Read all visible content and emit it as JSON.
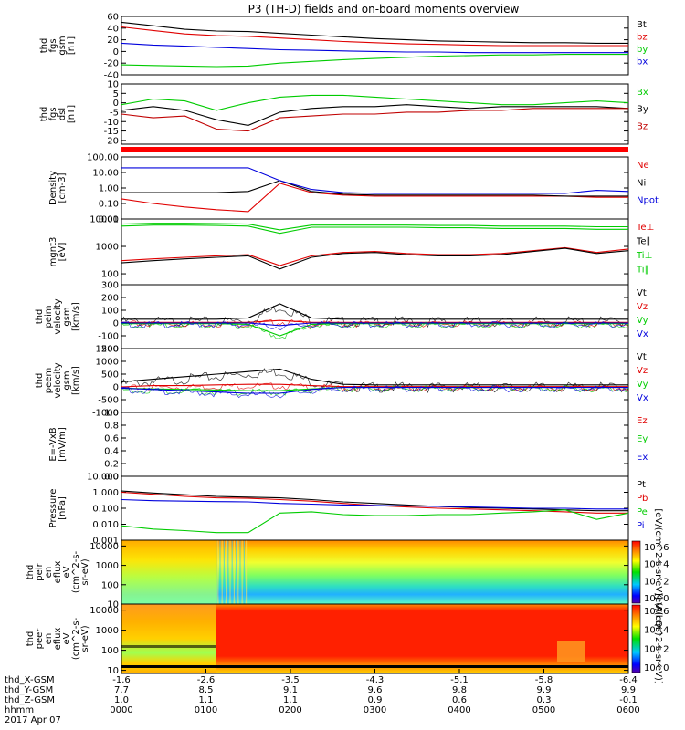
{
  "title": "P3 (TH-D) fields and on-board moments overview",
  "chart_data": {
    "type": "line",
    "title": "P3 (TH-D) fields and on-board moments overview",
    "date": "2017 Apr 07",
    "x_ticks": [
      "0000",
      "0100",
      "0200",
      "0300",
      "0400",
      "0500",
      "0600"
    ],
    "xlim": [
      "0000",
      "0600"
    ],
    "ephemeris": [
      {
        "label": "thd_X-GSM",
        "values": [
          "-1.6",
          "-2.6",
          "-3.5",
          "-4.3",
          "-5.1",
          "-5.8",
          "-6.4"
        ]
      },
      {
        "label": "thd_Y-GSM",
        "values": [
          "7.7",
          "8.5",
          "9.1",
          "9.6",
          "9.8",
          "9.9",
          "9.9"
        ]
      },
      {
        "label": "thd_Z-GSM",
        "values": [
          "1.0",
          "1.1",
          "1.1",
          "0.9",
          "0.6",
          "0.3",
          "-0.1"
        ]
      },
      {
        "label": "hhmm",
        "values": [
          "0000",
          "0100",
          "0200",
          "0300",
          "0400",
          "0500",
          "0600"
        ]
      }
    ],
    "panels": [
      {
        "id": "fgs_gsm",
        "ylabel": [
          "thd",
          "fgs",
          "gsm",
          "[nT]"
        ],
        "yticks": [
          "60",
          "40",
          "20",
          "0",
          "-20",
          "-40"
        ],
        "scale": "linear",
        "ylim": [
          -40,
          60
        ],
        "legend": [
          {
            "name": "Bt",
            "color": "#000000"
          },
          {
            "name": "bz",
            "color": "#e00000"
          },
          {
            "name": "by",
            "color": "#00cc00"
          },
          {
            "name": "bx",
            "color": "#0000dd"
          }
        ],
        "series": [
          {
            "name": "Bt",
            "values": [
              50,
              44,
              38,
              35,
              34,
              31,
              28,
              25,
              22,
              20,
              18,
              17,
              16,
              15,
              15,
              14,
              14
            ]
          },
          {
            "name": "bz",
            "values": [
              42,
              36,
              30,
              27,
              26,
              23,
              20,
              17,
              15,
              13,
              12,
              11,
              10,
              10,
              10,
              10,
              10
            ]
          },
          {
            "name": "by",
            "values": [
              -23,
              -24,
              -25,
              -26,
              -25,
              -20,
              -17,
              -14,
              -12,
              -10,
              -8,
              -7,
              -6,
              -6,
              -5,
              -5,
              -5
            ]
          },
          {
            "name": "bx",
            "values": [
              14,
              11,
              9,
              7,
              5,
              3,
              2,
              1,
              0,
              -1,
              -1,
              -2,
              -2,
              -2,
              -2,
              -2,
              -2
            ]
          }
        ]
      },
      {
        "id": "fgs_dsl",
        "ylabel": [
          "thd",
          "fgs",
          "dsl",
          "[nT]"
        ],
        "yticks": [
          "10",
          "5",
          "0",
          "-5",
          "-10",
          "-15",
          "-20"
        ],
        "scale": "linear",
        "ylim": [
          -22,
          10
        ],
        "legend": [
          {
            "name": "Bx",
            "color": "#00cc00"
          },
          {
            "name": "By",
            "color": "#000000"
          },
          {
            "name": "Bz",
            "color": "#c00000"
          }
        ],
        "series": [
          {
            "name": "Bx",
            "values": [
              -1,
              2,
              1,
              -4,
              0,
              3,
              4,
              4,
              3,
              2,
              1,
              0,
              -1,
              -1,
              0,
              1,
              0
            ]
          },
          {
            "name": "By",
            "values": [
              -4,
              -2,
              -4,
              -9,
              -12,
              -5,
              -3,
              -2,
              -2,
              -1,
              -2,
              -3,
              -2,
              -2,
              -2,
              -2,
              -3
            ]
          },
          {
            "name": "Bz",
            "values": [
              -6,
              -8,
              -7,
              -14,
              -15,
              -8,
              -7,
              -6,
              -6,
              -5,
              -5,
              -4,
              -4,
              -3,
              -3,
              -3,
              -3
            ]
          }
        ]
      },
      {
        "id": "density",
        "ylabel": [
          "Density",
          "[cm-3]"
        ],
        "yticks": [
          "100.00",
          "10.00",
          "1.00",
          "0.10",
          "0.01"
        ],
        "scale": "log",
        "ylim": [
          0.01,
          100
        ],
        "legend": [
          {
            "name": "Ne",
            "color": "#e00000"
          },
          {
            "name": "Ni",
            "color": "#000000"
          },
          {
            "name": "Npot",
            "color": "#0000dd"
          }
        ],
        "series": [
          {
            "name": "Ne",
            "values": [
              0.2,
              0.1,
              0.06,
              0.04,
              0.03,
              2,
              0.5,
              0.35,
              0.3,
              0.3,
              0.3,
              0.3,
              0.3,
              0.3,
              0.3,
              0.25,
              0.25
            ]
          },
          {
            "name": "Ni",
            "values": [
              0.5,
              0.5,
              0.5,
              0.5,
              0.6,
              3,
              0.6,
              0.4,
              0.35,
              0.35,
              0.35,
              0.35,
              0.35,
              0.35,
              0.3,
              0.3,
              0.3
            ]
          },
          {
            "name": "Npot",
            "values": [
              20,
              20,
              20,
              20,
              20,
              3,
              0.8,
              0.5,
              0.45,
              0.45,
              0.45,
              0.45,
              0.45,
              0.45,
              0.45,
              0.7,
              0.6
            ]
          }
        ]
      },
      {
        "id": "temps",
        "ylabel": [
          "mgnt3",
          "[eV]"
        ],
        "yticks": [
          "10000",
          "1000",
          "100"
        ],
        "scale": "log",
        "ylim": [
          40,
          10000
        ],
        "legend": [
          {
            "name": "Te⊥",
            "color": "#e00000"
          },
          {
            "name": "Te∥",
            "color": "#000000"
          },
          {
            "name": "Ti⊥",
            "color": "#00cc00"
          },
          {
            "name": "Ti∥",
            "color": "#00cc00"
          }
        ],
        "series": [
          {
            "name": "Te⊥",
            "values": [
              300,
              350,
              400,
              450,
              500,
              200,
              450,
              600,
              650,
              550,
              500,
              500,
              550,
              700,
              900,
              600,
              800
            ]
          },
          {
            "name": "Te∥",
            "values": [
              250,
              300,
              350,
              400,
              450,
              150,
              400,
              550,
              600,
              500,
              450,
              450,
              500,
              650,
              850,
              550,
              700
            ]
          },
          {
            "name": "Ti⊥",
            "values": [
              5500,
              6000,
              6000,
              5800,
              5500,
              3000,
              5000,
              5000,
              5000,
              5000,
              4800,
              4800,
              4500,
              4500,
              4500,
              4200,
              4200
            ]
          },
          {
            "name": "Ti∥",
            "values": [
              6500,
              7000,
              7000,
              6800,
              6500,
              4000,
              6000,
              6000,
              6000,
              6000,
              5800,
              5800,
              5500,
              5500,
              5500,
              5200,
              5200
            ]
          }
        ]
      },
      {
        "id": "peim",
        "ylabel": [
          "thd",
          "peim",
          "velocity",
          "gsm",
          "[km/s]"
        ],
        "yticks": [
          "300",
          "200",
          "100",
          "0",
          "-100",
          "-200"
        ],
        "scale": "linear",
        "ylim": [
          -200,
          300
        ],
        "legend": [
          {
            "name": "Vt",
            "color": "#000000"
          },
          {
            "name": "Vz",
            "color": "#e00000"
          },
          {
            "name": "Vy",
            "color": "#00cc00"
          },
          {
            "name": "Vx",
            "color": "#0000dd"
          }
        ],
        "series": [
          {
            "name": "Vt",
            "values": [
              30,
              30,
              30,
              30,
              40,
              150,
              40,
              30,
              30,
              30,
              30,
              30,
              30,
              30,
              30,
              30,
              30
            ]
          },
          {
            "name": "Vz",
            "values": [
              5,
              5,
              5,
              5,
              5,
              20,
              5,
              5,
              5,
              5,
              5,
              5,
              5,
              5,
              5,
              5,
              5
            ]
          },
          {
            "name": "Vy",
            "values": [
              -5,
              -5,
              -5,
              -5,
              -10,
              -100,
              -10,
              -5,
              -5,
              -5,
              -5,
              -5,
              -5,
              -5,
              -5,
              -5,
              -5
            ]
          },
          {
            "name": "Vx",
            "values": [
              0,
              0,
              0,
              0,
              0,
              -20,
              0,
              0,
              0,
              0,
              0,
              0,
              0,
              0,
              0,
              0,
              0
            ]
          }
        ]
      },
      {
        "id": "peem",
        "ylabel": [
          "thd",
          "peem",
          "velocity",
          "gsm",
          "[km/s]"
        ],
        "yticks": [
          "1500",
          "1000",
          "500",
          "0",
          "-500",
          "-1000"
        ],
        "scale": "linear",
        "ylim": [
          -1000,
          1500
        ],
        "legend": [
          {
            "name": "Vt",
            "color": "#000000"
          },
          {
            "name": "Vz",
            "color": "#e00000"
          },
          {
            "name": "Vy",
            "color": "#00cc00"
          },
          {
            "name": "Vx",
            "color": "#0000dd"
          }
        ],
        "series": [
          {
            "name": "Vt",
            "values": [
              200,
              300,
              400,
              500,
              600,
              700,
              300,
              100,
              80,
              80,
              80,
              80,
              80,
              80,
              80,
              80,
              80
            ]
          },
          {
            "name": "Vz",
            "values": [
              0,
              50,
              50,
              80,
              100,
              100,
              50,
              10,
              10,
              10,
              10,
              10,
              10,
              10,
              10,
              10,
              10
            ]
          },
          {
            "name": "Vy",
            "values": [
              -50,
              -80,
              -100,
              -120,
              -150,
              -150,
              -80,
              -20,
              -20,
              -20,
              -20,
              -20,
              -20,
              -20,
              -20,
              -20,
              -20
            ]
          },
          {
            "name": "Vx",
            "values": [
              -50,
              -100,
              -150,
              -200,
              -250,
              -250,
              -100,
              -20,
              -20,
              -20,
              -20,
              -20,
              -20,
              -20,
              -20,
              -20,
              -20
            ]
          }
        ]
      },
      {
        "id": "efield",
        "ylabel": [
          "E=-VxB",
          "[mV/m]"
        ],
        "yticks": [
          "1.0",
          "0.8",
          "0.6",
          "0.4",
          "0.2",
          "0.0"
        ],
        "scale": "linear",
        "ylim": [
          0,
          1
        ],
        "legend": [
          {
            "name": "Ez",
            "color": "#e00000"
          },
          {
            "name": "Ey",
            "color": "#00cc00"
          },
          {
            "name": "Ex",
            "color": "#0000dd"
          }
        ],
        "series": []
      },
      {
        "id": "pressure",
        "ylabel": [
          "Pressure",
          "[nPa]"
        ],
        "yticks": [
          "10.000",
          "1.000",
          "0.100",
          "0.010",
          "0.001"
        ],
        "scale": "log",
        "ylim": [
          0.001,
          10
        ],
        "legend": [
          {
            "name": "Pt",
            "color": "#000000"
          },
          {
            "name": "Pb",
            "color": "#e00000"
          },
          {
            "name": "Pe",
            "color": "#00cc00"
          },
          {
            "name": "Pi",
            "color": "#0000dd"
          }
        ],
        "series": [
          {
            "name": "Pt",
            "values": [
              1.2,
              0.9,
              0.7,
              0.55,
              0.5,
              0.45,
              0.35,
              0.25,
              0.2,
              0.16,
              0.13,
              0.11,
              0.1,
              0.09,
              0.08,
              0.07,
              0.07
            ]
          },
          {
            "name": "Pb",
            "values": [
              1.0,
              0.75,
              0.55,
              0.45,
              0.42,
              0.35,
              0.28,
              0.2,
              0.15,
              0.12,
              0.1,
              0.09,
              0.08,
              0.07,
              0.06,
              0.05,
              0.05
            ]
          },
          {
            "name": "Pe",
            "values": [
              0.008,
              0.005,
              0.004,
              0.003,
              0.003,
              0.05,
              0.06,
              0.04,
              0.035,
              0.035,
              0.04,
              0.04,
              0.05,
              0.06,
              0.08,
              0.02,
              0.05
            ]
          },
          {
            "name": "Pi",
            "values": [
              0.35,
              0.3,
              0.28,
              0.26,
              0.25,
              0.2,
              0.18,
              0.16,
              0.15,
              0.14,
              0.13,
              0.12,
              0.11,
              0.1,
              0.1,
              0.09,
              0.09
            ]
          }
        ]
      },
      {
        "id": "peir",
        "ylabel": [
          "thd",
          "peir",
          "en",
          "eflux",
          "eV",
          "(cm^2-s-",
          "sr-eV)"
        ],
        "yticks": [
          "10000",
          "1000",
          "100",
          "10"
        ],
        "scale": "log",
        "ylim": [
          10,
          20000
        ],
        "type": "heatmap",
        "colorbar_ticks": [
          "10^6",
          "10^4",
          "10^2",
          "10^0"
        ],
        "colorbar_label": "[eV/(cm^2-s-sr-eV)] (All Qs)"
      },
      {
        "id": "peer",
        "ylabel": [
          "thd",
          "peer",
          "en",
          "eflux",
          "eV",
          "(cm^2-s-",
          "sr-eV)"
        ],
        "yticks": [
          "10000",
          "1000",
          "100",
          "10"
        ],
        "scale": "log",
        "ylim": [
          7,
          20000
        ],
        "type": "heatmap",
        "colorbar_ticks": [
          "10^6",
          "10^4",
          "10^2",
          "10^0"
        ],
        "colorbar_label": "[eV/(cm^2-s-sr-eV)]"
      }
    ],
    "colors": {
      "black": "#000000",
      "red": "#e00000",
      "green": "#00cc00",
      "blue": "#0000dd"
    }
  }
}
